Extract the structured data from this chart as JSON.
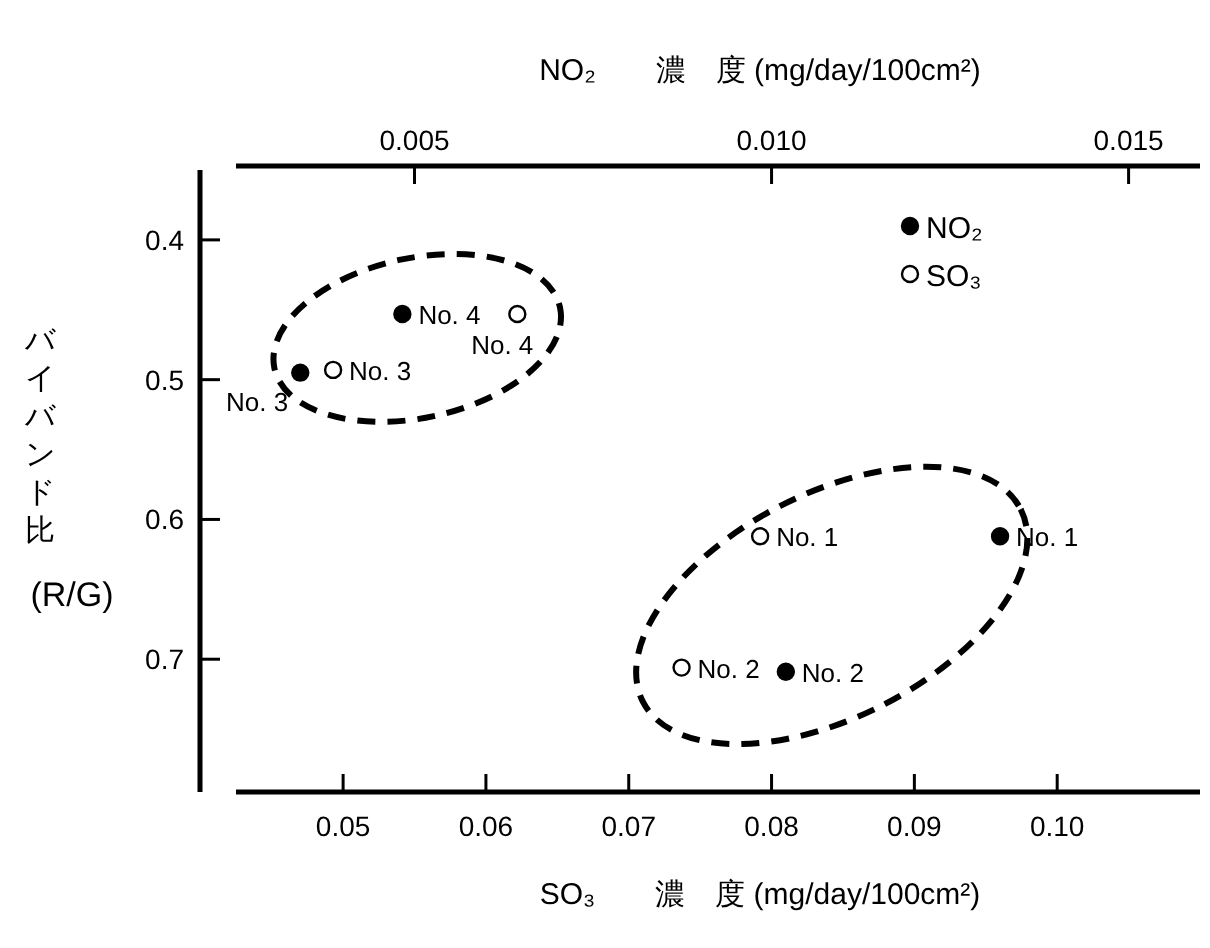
{
  "chart_data": {
    "type": "scatter",
    "xlabel": "SO₃　　濃　度 (mg/day/100cm²)",
    "x2label": "NO₂　　濃　度 (mg/day/100cm²)",
    "ylabel": "バイバンド比 (R/G)",
    "xlim": [
      0.0425,
      0.11
    ],
    "xticks": [
      0.05,
      0.06,
      0.07,
      0.08,
      0.09,
      {
        "value": 0.1,
        "label": "0.10"
      }
    ],
    "x2lim": [
      0.0025,
      0.016
    ],
    "x2ticks": [
      0.005,
      {
        "value": 0.01,
        "label": "0.010"
      },
      0.015
    ],
    "ylim": [
      0.795,
      0.35
    ],
    "yticks": [
      0.4,
      0.5,
      0.6,
      0.7
    ],
    "grid": false,
    "legend": "top right",
    "marker": "circle",
    "series": [
      {
        "name": "NO₂",
        "color": "#000000",
        "axis": "x2",
        "x": [
          0.0132,
          0.0102,
          0.0034,
          0.00483
        ],
        "values": [
          0.612,
          0.709,
          0.495,
          0.453
        ]
      },
      {
        "name": "SO₃",
        "color": "#ffffff",
        "x": [
          0.0792,
          0.0737,
          0.0493,
          0.0622
        ],
        "values": [
          0.612,
          0.706,
          0.493,
          0.453
        ]
      }
    ],
    "annotations": [
      "No. 1",
      "No. 2",
      "No. 3",
      "No. 4",
      {
        "text": "No. 1",
        "x": 0.0792,
        "y": 0.612
      },
      {
        "text": "No. 2",
        "x": 0.0737,
        "y": 0.706
      },
      {
        "text": "No. 3",
        "x": 0.0493,
        "y": 0.493
      },
      {
        "text": "No. 4",
        "x": 0.0622,
        "y": 0.453
      }
    ]
  }
}
